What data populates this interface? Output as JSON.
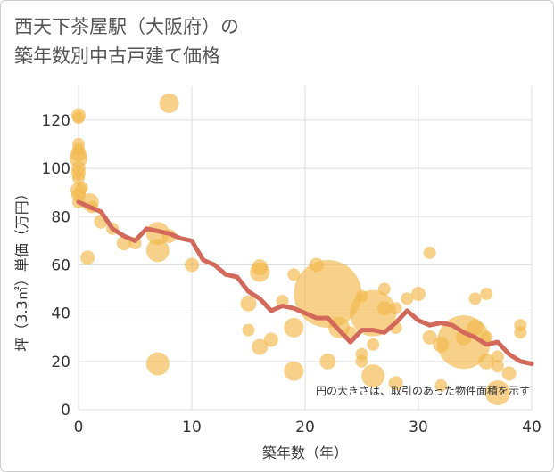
{
  "title_lines": [
    "西天下茶屋駅（大阪府）の",
    "築年数別中古戸建て価格"
  ],
  "chart_data": {
    "type": "scatter",
    "title": "西天下茶屋駅（大阪府）の築年数別中古戸建て価格",
    "xlabel": "築年数（年）",
    "ylabel": "坪（3.3㎡）単価（万円）",
    "xlim": [
      0,
      40
    ],
    "ylim": [
      0,
      134
    ],
    "x_ticks": [
      0,
      10,
      20,
      30,
      40
    ],
    "y_ticks": [
      0,
      20,
      40,
      60,
      80,
      100,
      120
    ],
    "grid": true,
    "note": "円の大きさは、取引のあった物件面積を示す",
    "colors": {
      "bubble": "#f2b84b",
      "trend": "#d2695a",
      "grid": "#dddddd"
    },
    "bubbles": [
      {
        "x": 0,
        "y": 122,
        "size": 8
      },
      {
        "x": 0,
        "y": 121,
        "size": 7
      },
      {
        "x": 0,
        "y": 110,
        "size": 7
      },
      {
        "x": 0,
        "y": 108,
        "size": 7
      },
      {
        "x": 0,
        "y": 106,
        "size": 9
      },
      {
        "x": 0,
        "y": 104,
        "size": 10
      },
      {
        "x": 0,
        "y": 100,
        "size": 8
      },
      {
        "x": 0,
        "y": 98,
        "size": 8
      },
      {
        "x": 0,
        "y": 96,
        "size": 7
      },
      {
        "x": 0,
        "y": 91,
        "size": 9
      },
      {
        "x": 0,
        "y": 89,
        "size": 8
      },
      {
        "x": 0,
        "y": 86,
        "size": 7
      },
      {
        "x": 0.3,
        "y": 92,
        "size": 7
      },
      {
        "x": 1,
        "y": 86,
        "size": 10
      },
      {
        "x": 1.2,
        "y": 84,
        "size": 7
      },
      {
        "x": 0.8,
        "y": 63,
        "size": 8
      },
      {
        "x": 2,
        "y": 78,
        "size": 8
      },
      {
        "x": 3,
        "y": 75,
        "size": 7
      },
      {
        "x": 4,
        "y": 69,
        "size": 8
      },
      {
        "x": 5,
        "y": 69,
        "size": 7
      },
      {
        "x": 7,
        "y": 73,
        "size": 13
      },
      {
        "x": 7,
        "y": 66,
        "size": 13
      },
      {
        "x": 8,
        "y": 127,
        "size": 11
      },
      {
        "x": 8,
        "y": 72,
        "size": 8
      },
      {
        "x": 7,
        "y": 19,
        "size": 13
      },
      {
        "x": 10,
        "y": 60,
        "size": 8
      },
      {
        "x": 15,
        "y": 44,
        "size": 9
      },
      {
        "x": 15,
        "y": 33,
        "size": 7
      },
      {
        "x": 16,
        "y": 59,
        "size": 9
      },
      {
        "x": 16,
        "y": 57,
        "size": 11
      },
      {
        "x": 16,
        "y": 26,
        "size": 9
      },
      {
        "x": 17,
        "y": 29,
        "size": 8
      },
      {
        "x": 18,
        "y": 45,
        "size": 7
      },
      {
        "x": 19,
        "y": 56,
        "size": 7
      },
      {
        "x": 19,
        "y": 34,
        "size": 11
      },
      {
        "x": 19,
        "y": 16,
        "size": 11
      },
      {
        "x": 21,
        "y": 60,
        "size": 8
      },
      {
        "x": 22,
        "y": 48,
        "size": 38
      },
      {
        "x": 22,
        "y": 20,
        "size": 9
      },
      {
        "x": 23,
        "y": 34,
        "size": 12
      },
      {
        "x": 24,
        "y": 32,
        "size": 7
      },
      {
        "x": 25,
        "y": 47,
        "size": 7
      },
      {
        "x": 25,
        "y": 23,
        "size": 7
      },
      {
        "x": 25,
        "y": 20,
        "size": 7
      },
      {
        "x": 26,
        "y": 40,
        "size": 26
      },
      {
        "x": 26,
        "y": 27,
        "size": 7
      },
      {
        "x": 26,
        "y": 14,
        "size": 13
      },
      {
        "x": 27,
        "y": 50,
        "size": 7
      },
      {
        "x": 27,
        "y": 42,
        "size": 8
      },
      {
        "x": 28,
        "y": 42,
        "size": 7
      },
      {
        "x": 28,
        "y": 34,
        "size": 7
      },
      {
        "x": 28,
        "y": 11,
        "size": 8
      },
      {
        "x": 29,
        "y": 46,
        "size": 7
      },
      {
        "x": 30,
        "y": 48,
        "size": 8
      },
      {
        "x": 31,
        "y": 65,
        "size": 7
      },
      {
        "x": 31,
        "y": 30,
        "size": 8
      },
      {
        "x": 32,
        "y": 27,
        "size": 9
      },
      {
        "x": 32,
        "y": 10,
        "size": 7
      },
      {
        "x": 34,
        "y": 28,
        "size": 30
      },
      {
        "x": 34,
        "y": 30,
        "size": 9
      },
      {
        "x": 35,
        "y": 46,
        "size": 7
      },
      {
        "x": 35,
        "y": 34,
        "size": 9
      },
      {
        "x": 36,
        "y": 48,
        "size": 7
      },
      {
        "x": 36,
        "y": 30,
        "size": 7
      },
      {
        "x": 36,
        "y": 20,
        "size": 9
      },
      {
        "x": 37,
        "y": 22,
        "size": 7
      },
      {
        "x": 37,
        "y": 18,
        "size": 7
      },
      {
        "x": 37,
        "y": 7,
        "size": 14
      },
      {
        "x": 38,
        "y": 15,
        "size": 8
      },
      {
        "x": 39,
        "y": 35,
        "size": 7
      },
      {
        "x": 39,
        "y": 32,
        "size": 7
      }
    ],
    "trend": {
      "x": [
        0,
        1,
        2,
        3,
        4,
        5,
        6,
        7,
        8,
        9,
        10,
        11,
        12,
        13,
        14,
        15,
        16,
        17,
        18,
        19,
        20,
        21,
        22,
        23,
        24,
        25,
        26,
        27,
        28,
        29,
        30,
        31,
        32,
        33,
        34,
        35,
        36,
        37,
        38,
        39,
        40
      ],
      "y": [
        86,
        84,
        82,
        75,
        72,
        70,
        75,
        74,
        73,
        71,
        70,
        62,
        60,
        56,
        55,
        49,
        46,
        41,
        43,
        42,
        40,
        38,
        38,
        33,
        28,
        33,
        33,
        32,
        36,
        41,
        37,
        35,
        36,
        35,
        32,
        30,
        27,
        28,
        23,
        20,
        19
      ]
    }
  }
}
